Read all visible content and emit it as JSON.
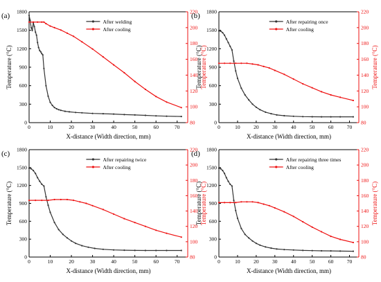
{
  "colors": {
    "black_series": "#333333",
    "red_series": "#ee1111",
    "axis_left": "#000000",
    "axis_right": "#ee1111"
  },
  "chart_data": [
    {
      "type": "line",
      "panel_label": "(a)",
      "xlabel": "X-distance (Width direction, mm)",
      "ylabel_left": "Temperature (°C)",
      "ylabel_right": "Temperature (°C)",
      "xlim": [
        0,
        75
      ],
      "xticks": [
        0,
        10,
        20,
        30,
        40,
        50,
        60,
        70
      ],
      "ylim_left": [
        0,
        1800
      ],
      "yticks_left": [
        0,
        300,
        600,
        900,
        1200,
        1500,
        1800
      ],
      "ylim_right": [
        80,
        220
      ],
      "yticks_right": [
        80,
        100,
        120,
        140,
        160,
        180,
        200,
        220
      ],
      "grid": false,
      "legend": "top-center",
      "series": [
        {
          "name": "After welding",
          "axis": "left",
          "x": [
            0,
            0.5,
            1,
            1.5,
            2,
            2.5,
            3,
            3.5,
            4,
            4.5,
            5,
            5.5,
            6,
            6.5,
            7,
            8,
            9,
            10,
            11,
            12,
            13,
            14,
            15,
            17,
            19,
            22,
            25,
            30,
            35,
            40,
            45,
            50,
            55,
            60,
            65,
            72
          ],
          "y": [
            1740,
            1660,
            1540,
            1500,
            1620,
            1560,
            1470,
            1420,
            1300,
            1220,
            1170,
            1150,
            1120,
            1100,
            880,
            600,
            430,
            330,
            280,
            245,
            225,
            210,
            200,
            185,
            175,
            165,
            160,
            150,
            145,
            140,
            130,
            125,
            118,
            110,
            105,
            100
          ]
        },
        {
          "name": "After cooling",
          "axis": "right",
          "x": [
            0,
            2,
            4,
            6,
            7,
            8,
            10,
            12,
            15,
            18,
            21,
            25,
            30,
            35,
            40,
            45,
            50,
            55,
            60,
            65,
            72
          ],
          "y": [
            207,
            207,
            207,
            207,
            207,
            205,
            202,
            200,
            197,
            193,
            189,
            182,
            173,
            163,
            153,
            143,
            132,
            122,
            113,
            106,
            99
          ]
        }
      ]
    },
    {
      "type": "line",
      "panel_label": "(b)",
      "xlabel": "X-distance (Width direction, mm)",
      "ylabel_left": "Temperature (°C)",
      "ylabel_right": "Temperature (°C)",
      "xlim": [
        0,
        75
      ],
      "xticks": [
        0,
        10,
        20,
        30,
        40,
        50,
        60,
        70
      ],
      "ylim_left": [
        0,
        1800
      ],
      "yticks_left": [
        0,
        300,
        600,
        900,
        1200,
        1500,
        1800
      ],
      "ylim_right": [
        80,
        220
      ],
      "yticks_right": [
        80,
        100,
        120,
        140,
        160,
        180,
        200,
        220
      ],
      "grid": false,
      "legend": "top-center",
      "series": [
        {
          "name": "After repairing once",
          "axis": "left",
          "x": [
            0,
            1,
            2,
            3,
            4,
            5,
            6,
            7,
            8,
            9,
            10,
            12,
            14,
            16,
            18,
            20,
            22,
            25,
            28,
            31,
            35,
            40,
            45,
            50,
            55,
            60,
            65,
            72
          ],
          "y": [
            1490,
            1485,
            1460,
            1420,
            1360,
            1300,
            1240,
            1180,
            1000,
            840,
            720,
            560,
            450,
            370,
            300,
            250,
            210,
            170,
            145,
            125,
            112,
            103,
            98,
            96,
            95,
            95,
            95,
            95
          ]
        },
        {
          "name": "After cooling",
          "axis": "right",
          "x": [
            0,
            3,
            6,
            9,
            12,
            15,
            18,
            21,
            24,
            27,
            30,
            35,
            40,
            45,
            50,
            55,
            60,
            65,
            72
          ],
          "y": [
            155,
            155,
            155,
            155,
            155,
            155,
            154,
            153,
            151,
            149,
            146,
            141,
            135,
            129,
            124,
            119,
            115,
            112,
            108
          ]
        }
      ]
    },
    {
      "type": "line",
      "panel_label": "(c)",
      "xlabel": "X-distance (Width direction, mm)",
      "ylabel_left": "Temperature (°C)",
      "ylabel_right": "Temperature (°C)",
      "xlim": [
        0,
        75
      ],
      "xticks": [
        0,
        10,
        20,
        30,
        40,
        50,
        60,
        70
      ],
      "ylim_left": [
        0,
        1800
      ],
      "yticks_left": [
        0,
        300,
        600,
        900,
        1200,
        1500,
        1800
      ],
      "ylim_right": [
        80,
        220
      ],
      "yticks_right": [
        80,
        100,
        120,
        140,
        160,
        180,
        200,
        220
      ],
      "grid": false,
      "legend": "top-center",
      "series": [
        {
          "name": "After repairing twice",
          "axis": "left",
          "x": [
            0,
            1,
            2,
            3,
            4,
            5,
            6,
            7,
            8,
            9,
            10,
            12,
            14,
            16,
            18,
            20,
            22,
            25,
            28,
            31,
            35,
            40,
            45,
            50,
            55,
            60,
            65,
            72
          ],
          "y": [
            1490,
            1480,
            1450,
            1400,
            1330,
            1270,
            1220,
            1190,
            1010,
            870,
            750,
            580,
            460,
            380,
            320,
            270,
            230,
            190,
            165,
            145,
            130,
            120,
            115,
            112,
            110,
            110,
            110,
            110
          ]
        },
        {
          "name": "After cooling",
          "axis": "right",
          "x": [
            0,
            3,
            6,
            9,
            12,
            15,
            18,
            21,
            24,
            27,
            30,
            35,
            40,
            45,
            50,
            55,
            60,
            65,
            72
          ],
          "y": [
            154,
            154,
            154,
            154,
            155,
            155,
            155,
            154,
            152,
            150,
            147,
            142,
            136,
            130,
            125,
            120,
            115,
            111,
            106
          ]
        }
      ]
    },
    {
      "type": "line",
      "panel_label": "(d)",
      "xlabel": "X-distance (Width direction, mm)",
      "ylabel_left": "Temperature (°C)",
      "ylabel_right": "Temperature (°C)",
      "xlim": [
        0,
        75
      ],
      "xticks": [
        0,
        10,
        20,
        30,
        40,
        50,
        60,
        70
      ],
      "ylim_left": [
        0,
        1800
      ],
      "yticks_left": [
        0,
        300,
        600,
        900,
        1200,
        1500,
        1800
      ],
      "ylim_right": [
        80,
        220
      ],
      "yticks_right": [
        80,
        100,
        120,
        140,
        160,
        180,
        200,
        220
      ],
      "grid": false,
      "legend": "top-center",
      "series": [
        {
          "name": "After repairing three times",
          "axis": "left",
          "x": [
            0,
            1,
            2,
            3,
            4,
            5,
            6,
            7,
            8,
            9,
            10,
            12,
            14,
            16,
            18,
            20,
            22,
            25,
            28,
            31,
            35,
            40,
            45,
            50,
            55,
            60,
            65,
            72
          ],
          "y": [
            1490,
            1480,
            1450,
            1400,
            1330,
            1270,
            1220,
            1190,
            950,
            780,
            650,
            480,
            380,
            320,
            270,
            230,
            200,
            170,
            150,
            135,
            125,
            118,
            112,
            108,
            105,
            103,
            100,
            98
          ]
        },
        {
          "name": "After cooling",
          "axis": "right",
          "x": [
            0,
            3,
            6,
            9,
            12,
            15,
            18,
            21,
            24,
            27,
            30,
            35,
            40,
            45,
            50,
            55,
            60,
            65,
            72
          ],
          "y": [
            151,
            151,
            151,
            151,
            152,
            152,
            152,
            151,
            149,
            147,
            144,
            139,
            133,
            126,
            119,
            113,
            107,
            103,
            99
          ]
        }
      ]
    }
  ]
}
